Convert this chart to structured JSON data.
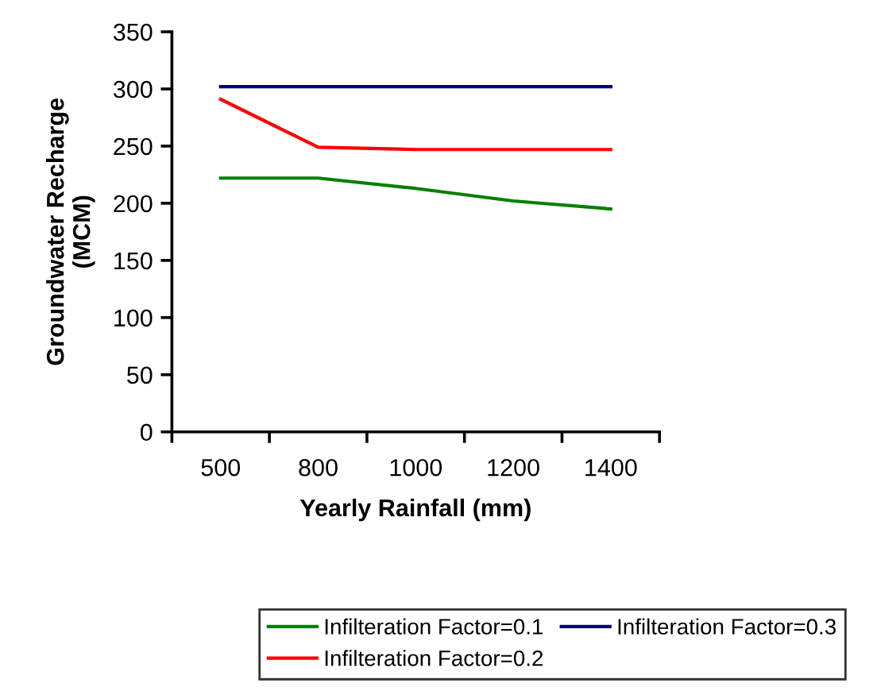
{
  "chart_data": {
    "type": "line",
    "xlabel": "Yearly Rainfall (mm)",
    "ylabel": "Groundwater Recharge\n(MCM)",
    "categories": [
      "500",
      "800",
      "1000",
      "1200",
      "1400"
    ],
    "series": [
      {
        "name": "Infilteration Factor=0.1",
        "color": "#008000",
        "values": [
          222,
          222,
          213,
          202,
          195
        ]
      },
      {
        "name": "Infilteration Factor=0.2",
        "color": "#ff0000",
        "values": [
          291,
          249,
          247,
          247,
          247
        ]
      },
      {
        "name": "Infilteration Factor=0.3",
        "color": "#000080",
        "values": [
          302,
          302,
          302,
          302,
          302
        ]
      }
    ],
    "ylim": [
      0,
      350
    ],
    "yticks": [
      0,
      50,
      100,
      150,
      200,
      250,
      300,
      350
    ],
    "grid": false,
    "legend": "bottom",
    "marker": "none",
    "line_style": "solid"
  }
}
